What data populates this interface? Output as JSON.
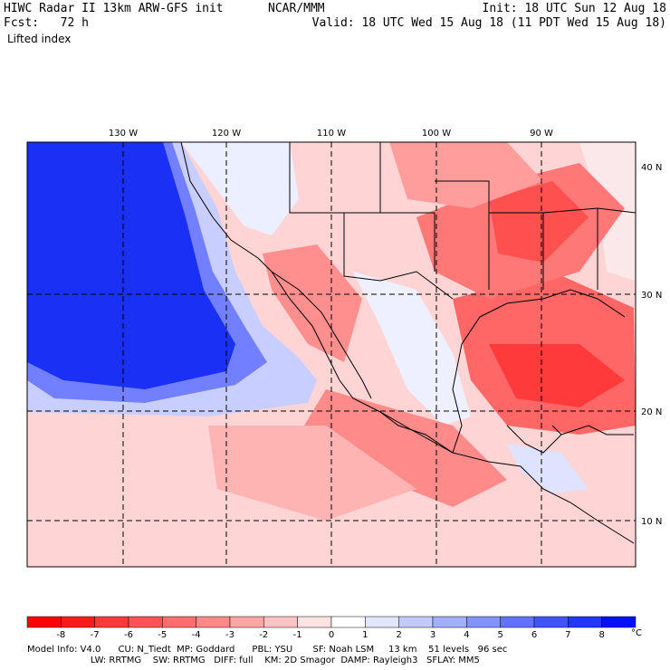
{
  "header": {
    "left_line1": "HIWC Radar II 13km ARW-GFS init",
    "left_line2": "Fcst:   72 h",
    "center_line1": "NCAR/MMM",
    "right_line1": "Init: 18 UTC Sun 12 Aug 18",
    "right_line2": "Valid: 18 UTC Wed 15 Aug 18 (11 PDT Wed 15 Aug 18)",
    "field_name": "Lifted index"
  },
  "map": {
    "lon_labels": [
      "130 W",
      "120 W",
      "110 W",
      "100 W",
      "90 W"
    ],
    "lat_labels": [
      "40 N",
      "30 N",
      "20 N",
      "10 N"
    ]
  },
  "colorbar": {
    "labels": [
      "-8",
      "-7",
      "-6",
      "-5",
      "-4",
      "-3",
      "-2",
      "-1",
      "0",
      "1",
      "2",
      "3",
      "4",
      "5",
      "6",
      "7",
      "8"
    ],
    "unit": "°C",
    "colors": [
      "#ff0000",
      "#ff1a1a",
      "#ff3838",
      "#ff5252",
      "#ff6e6e",
      "#ff8888",
      "#ffa5a5",
      "#ffc2c2",
      "#ffe2e2",
      "#ffffff",
      "#e2e6ff",
      "#c2caff",
      "#a2aeff",
      "#8292ff",
      "#6272ff",
      "#4252ff",
      "#2236ff",
      "#0010ff"
    ]
  },
  "model_info": {
    "line1": "Model Info: V4.0      CU: N_Tiedt  MP: Goddard      PBL: YSU       SF: Noah LSM     13 km    51 levels   96 sec",
    "line2": "                      LW: RRTMG    SW: RRTMG   DIFF: full    KM: 2D Smagor  DAMP: Rayleigh3   SFLAY: MM5"
  }
}
